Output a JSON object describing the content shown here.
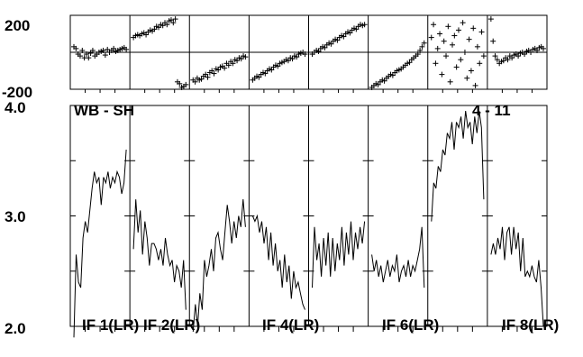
{
  "chart_data": {
    "type": "line",
    "title_left": "WB - SH",
    "title_right": "4 - 11",
    "phase_panel": {
      "ylim": [
        -200,
        200
      ],
      "ytick_labels": [
        "200",
        "-200"
      ]
    },
    "amp_panel": {
      "ylim": [
        2.0,
        4.0
      ],
      "ytick_labels": [
        "4.0",
        "3.0",
        "2.0"
      ]
    },
    "if_labels": [
      "IF 1(LR)",
      "IF 2(LR)",
      "IF 4(LR)",
      "IF 6(LR)",
      "IF 8(LR)"
    ],
    "if_label_columns": [
      0,
      1,
      3,
      5,
      7
    ],
    "x_ticks_per_column": 3,
    "series": [
      {
        "amp": [
          1.9,
          2.65,
          2.4,
          2.35,
          2.8,
          2.95,
          2.85,
          3.05,
          3.25,
          3.4,
          3.3,
          3.35,
          3.1,
          3.35,
          3.3,
          3.4,
          3.25,
          3.35,
          3.3,
          3.4,
          3.35,
          3.2,
          3.3,
          3.6
        ],
        "phase": [
          30,
          20,
          -10,
          -20,
          10,
          -30,
          -10,
          -30,
          -5,
          10,
          -20,
          -10,
          0,
          5,
          10,
          -15,
          15,
          0,
          10,
          20,
          5,
          10,
          15,
          20,
          25,
          15
        ]
      },
      {
        "amp": [
          2.7,
          3.15,
          2.85,
          3.05,
          2.65,
          2.95,
          2.8,
          2.55,
          2.75,
          2.75,
          2.7,
          2.6,
          2.7,
          2.55,
          2.8,
          2.65,
          2.55,
          2.6,
          2.4,
          2.55,
          2.5,
          2.35,
          2.6,
          2.15
        ],
        "phase": [
          80,
          90,
          95,
          90,
          100,
          105,
          95,
          110,
          120,
          115,
          125,
          140,
          135,
          150,
          145,
          160,
          150,
          170,
          175,
          160,
          180,
          -160,
          -170,
          -190,
          -185,
          -175
        ]
      },
      {
        "amp": [
          1.95,
          2.2,
          2.0,
          2.3,
          2.15,
          2.6,
          2.45,
          2.55,
          2.7,
          2.5,
          2.8,
          2.85,
          2.7,
          2.6,
          2.85,
          3.1,
          2.95,
          2.75,
          2.95,
          2.8,
          3.0,
          2.9,
          3.15,
          2.9
        ],
        "phase": [
          -150,
          -160,
          -140,
          -150,
          -145,
          -130,
          -120,
          -135,
          -110,
          -100,
          -115,
          -90,
          -95,
          -80,
          -75,
          -85,
          -60,
          -70,
          -50,
          -60,
          -40,
          -45,
          -30,
          -35,
          -20,
          -25
        ]
      },
      {
        "amp": [
          3.0,
          2.95,
          3.0,
          2.85,
          2.95,
          2.75,
          2.9,
          2.6,
          2.85,
          2.55,
          2.75,
          2.5,
          2.6,
          2.35,
          2.65,
          2.4,
          2.55,
          2.25,
          2.5,
          2.35,
          2.4,
          2.3,
          2.2,
          2.15
        ],
        "phase": [
          -150,
          -140,
          -130,
          -135,
          -120,
          -110,
          -115,
          -100,
          -90,
          -95,
          -80,
          -70,
          -75,
          -60,
          -55,
          -50,
          -40,
          -45,
          -30,
          -35,
          -20,
          -25,
          -10,
          -5,
          0,
          -10
        ]
      },
      {
        "amp": [
          2.35,
          2.9,
          2.6,
          2.75,
          2.45,
          2.8,
          2.55,
          2.85,
          2.45,
          2.8,
          2.5,
          2.75,
          2.6,
          2.9,
          2.55,
          2.85,
          2.65,
          2.95,
          2.6,
          2.85,
          2.7,
          2.9,
          2.75,
          2.95
        ],
        "phase": [
          -10,
          0,
          10,
          5,
          20,
          30,
          25,
          40,
          50,
          45,
          60,
          70,
          65,
          80,
          90,
          85,
          100,
          110,
          105,
          120,
          130,
          125,
          140,
          150,
          145,
          150
        ]
      },
      {
        "amp": [
          2.65,
          2.5,
          2.6,
          2.45,
          2.55,
          2.4,
          2.5,
          2.6,
          2.45,
          2.55,
          2.5,
          2.65,
          2.4,
          2.5,
          2.55,
          2.45,
          2.6,
          2.45,
          2.55,
          2.5,
          2.6,
          2.7,
          2.9,
          2.35
        ],
        "phase": [
          -190,
          -180,
          -170,
          -175,
          -160,
          -150,
          -155,
          -140,
          -130,
          -120,
          -125,
          -110,
          -100,
          -95,
          -90,
          -80,
          -70,
          -60,
          -55,
          -40,
          -30,
          -20,
          -10,
          10,
          30,
          50
        ]
      },
      {
        "amp": [
          2.95,
          3.3,
          3.25,
          3.45,
          3.4,
          3.6,
          3.55,
          3.75,
          3.7,
          3.85,
          3.6,
          3.85,
          3.8,
          3.9,
          3.7,
          3.95,
          3.8,
          3.85,
          3.65,
          3.9,
          3.75,
          3.95,
          3.8,
          3.15
        ],
        "phase": [
          80,
          150,
          -60,
          20,
          100,
          -120,
          60,
          -20,
          140,
          -160,
          40,
          90,
          -80,
          120,
          -40,
          160,
          0,
          -140,
          70,
          -100,
          130,
          -180,
          30,
          -60,
          110,
          -20
        ]
      },
      {
        "amp": [
          2.65,
          2.75,
          2.65,
          2.8,
          2.7,
          2.9,
          2.6,
          2.85,
          2.9,
          2.65,
          2.9,
          2.7,
          2.85,
          2.5,
          2.8,
          2.45,
          2.5,
          2.45,
          2.55,
          2.45,
          2.4,
          2.6,
          2.35,
          2.0
        ],
        "phase": [
          180,
          60,
          -20,
          -40,
          -60,
          -50,
          -45,
          -30,
          -40,
          -20,
          -30,
          -15,
          -10,
          -20,
          -5,
          0,
          -10,
          5,
          10,
          0,
          15,
          20,
          10,
          25,
          30,
          20
        ]
      }
    ]
  }
}
